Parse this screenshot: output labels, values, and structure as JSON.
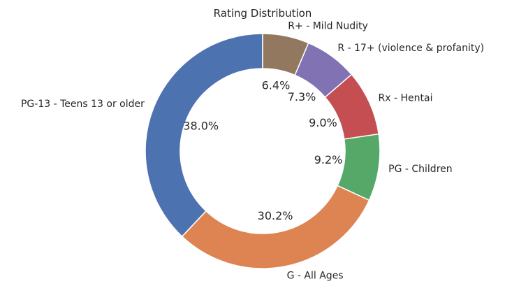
{
  "chart_data": {
    "type": "pie",
    "title": "Rating Distribution",
    "donut": true,
    "start": "top",
    "direction": "counterclockwise",
    "slices": [
      {
        "label": "PG-13 - Teens 13 or older",
        "value": 38.0,
        "pct_text": "38.0%",
        "color": "#4c72b0"
      },
      {
        "label": "G - All Ages",
        "value": 30.2,
        "pct_text": "30.2%",
        "color": "#dd8452"
      },
      {
        "label": "PG - Children",
        "value": 9.2,
        "pct_text": "9.2%",
        "color": "#55a868"
      },
      {
        "label": "Rx - Hentai",
        "value": 9.0,
        "pct_text": "9.0%",
        "color": "#c44e52"
      },
      {
        "label": "R - 17+ (violence & profanity)",
        "value": 7.3,
        "pct_text": "7.3%",
        "color": "#8172b3"
      },
      {
        "label": "R+ - Mild Nudity",
        "value": 6.4,
        "pct_text": "6.4%",
        "color": "#937860"
      }
    ]
  }
}
